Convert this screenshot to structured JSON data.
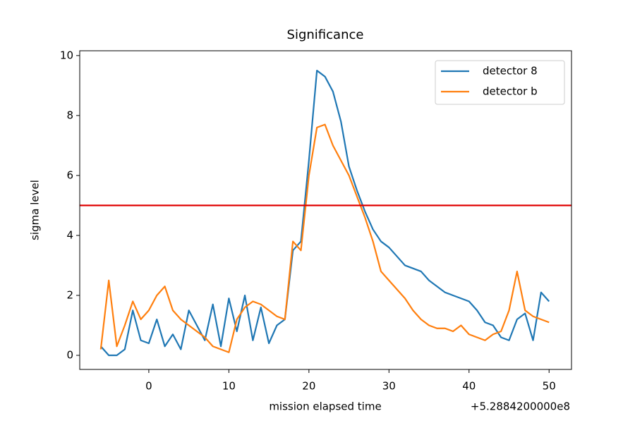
{
  "chart_data": {
    "type": "line",
    "title": "Significance",
    "x_label": "mission elapsed time",
    "y_label": "sigma level",
    "x_offset_label": "+5.2884200000e8",
    "x": [
      -6,
      -5,
      -4,
      -3,
      -2,
      -1,
      0,
      1,
      2,
      3,
      4,
      5,
      6,
      7,
      8,
      9,
      10,
      11,
      12,
      13,
      14,
      15,
      16,
      17,
      18,
      19,
      20,
      21,
      22,
      23,
      24,
      25,
      26,
      27,
      28,
      29,
      30,
      31,
      32,
      33,
      34,
      35,
      36,
      37,
      38,
      39,
      40,
      41,
      42,
      43,
      44,
      45,
      46,
      47,
      48,
      49,
      50
    ],
    "series": [
      {
        "name": "detector 8",
        "color": "#1f77b4",
        "values": [
          0.3,
          0.0,
          0.0,
          0.2,
          1.5,
          0.5,
          0.4,
          1.2,
          0.3,
          0.7,
          0.2,
          1.5,
          1.0,
          0.5,
          1.7,
          0.3,
          1.9,
          0.8,
          2.0,
          0.5,
          1.6,
          0.4,
          1.0,
          1.2,
          3.5,
          3.8,
          6.5,
          9.5,
          9.3,
          8.8,
          7.8,
          6.3,
          5.5,
          4.8,
          4.2,
          3.8,
          3.6,
          3.3,
          3.0,
          2.9,
          2.8,
          2.5,
          2.3,
          2.1,
          2.0,
          1.9,
          1.8,
          1.5,
          1.1,
          1.0,
          0.6,
          0.5,
          1.2,
          1.4,
          0.5,
          2.1,
          1.8
        ]
      },
      {
        "name": "detector b",
        "color": "#ff7f0e",
        "values": [
          0.2,
          2.5,
          0.3,
          1.0,
          1.8,
          1.2,
          1.5,
          2.0,
          2.3,
          1.5,
          1.2,
          1.0,
          0.8,
          0.6,
          0.3,
          0.2,
          0.1,
          1.2,
          1.6,
          1.8,
          1.7,
          1.5,
          1.3,
          1.2,
          3.8,
          3.5,
          6.0,
          7.6,
          7.7,
          7.0,
          6.5,
          6.0,
          5.3,
          4.6,
          3.8,
          2.8,
          2.5,
          2.2,
          1.9,
          1.5,
          1.2,
          1.0,
          0.9,
          0.9,
          0.8,
          1.0,
          0.7,
          0.6,
          0.5,
          0.7,
          0.8,
          1.5,
          2.8,
          1.5,
          1.3,
          1.2,
          1.1
        ]
      }
    ],
    "threshold": {
      "value": 5,
      "color": "#e00000"
    },
    "xlim": [
      -8.63,
      52.8
    ],
    "ylim": [
      -0.47,
      10.16
    ],
    "xticks": [
      0,
      10,
      20,
      30,
      40,
      50
    ],
    "yticks": [
      0,
      2,
      4,
      6,
      8,
      10
    ],
    "legend": "upper right"
  }
}
